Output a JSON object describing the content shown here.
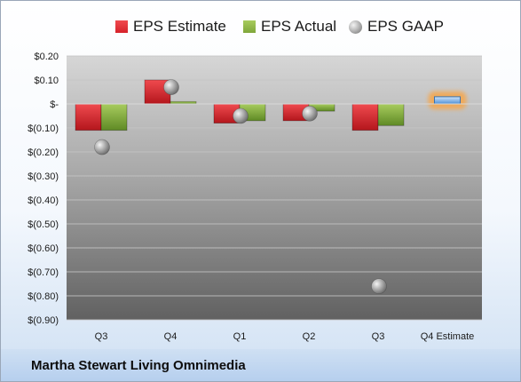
{
  "colors": {
    "estimate": "#d6222a",
    "actual": "#7ea63a",
    "gaap": "#9a9a9a",
    "highlight": "#4f8fd6"
  },
  "legend": {
    "estimate_label": "EPS Estimate",
    "actual_label": "EPS Actual",
    "gaap_label": "EPS GAAP"
  },
  "footer": {
    "company": "Martha Stewart Living Omnimedia"
  },
  "chart_data": {
    "type": "bar",
    "categories": [
      "Q3",
      "Q4",
      "Q1",
      "Q2",
      "Q3",
      "Q4 Estimate"
    ],
    "series": [
      {
        "name": "EPS Estimate",
        "kind": "bar",
        "values": [
          -0.11,
          0.1,
          -0.08,
          -0.07,
          -0.11,
          0.03
        ]
      },
      {
        "name": "EPS Actual",
        "kind": "bar",
        "values": [
          -0.11,
          0.01,
          -0.07,
          -0.03,
          -0.09,
          null
        ]
      },
      {
        "name": "EPS GAAP",
        "kind": "marker",
        "values": [
          -0.18,
          0.07,
          -0.05,
          -0.04,
          -0.76,
          null
        ]
      }
    ],
    "yticks": [
      "$0.20",
      "$0.10",
      "$-",
      "$(0.10)",
      "$(0.20)",
      "$(0.30)",
      "$(0.40)",
      "$(0.50)",
      "$(0.60)",
      "$(0.70)",
      "$(0.80)",
      "$(0.90)"
    ],
    "ylim": [
      -0.9,
      0.2
    ],
    "grid": true,
    "legend_position": "top",
    "highlight_category": "Q4 Estimate"
  }
}
